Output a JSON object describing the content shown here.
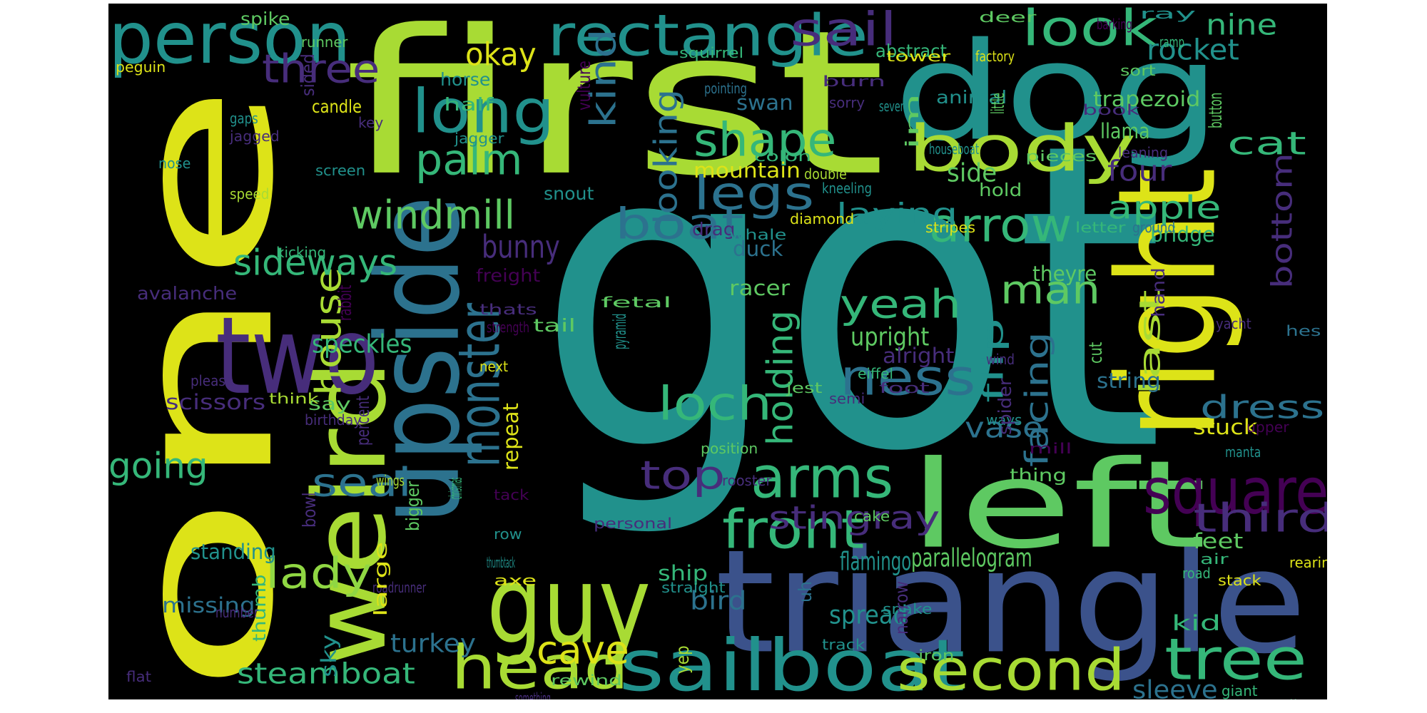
{
  "palette": {
    "yellow": "#dde318",
    "lime": "#a8db34",
    "green": "#5ec962",
    "sea": "#35b779",
    "teal": "#21918c",
    "tealblue": "#2c728e",
    "blue": "#3b528b",
    "indigo": "#472d7b",
    "purple": "#440154",
    "mint": "#90d743"
  },
  "words": [
    {
      "text": "got",
      "color": "teal"
    },
    {
      "text": "first",
      "color": "lime"
    },
    {
      "text": "one",
      "color": "yellow"
    },
    {
      "text": "triangle",
      "color": "blue"
    },
    {
      "text": "dog",
      "color": "teal"
    },
    {
      "text": "right",
      "color": "yellow"
    },
    {
      "text": "upside",
      "color": "tealblue"
    },
    {
      "text": "left",
      "color": "green"
    },
    {
      "text": "guy",
      "color": "lime"
    },
    {
      "text": "weird",
      "color": "lime"
    },
    {
      "text": "two",
      "color": "indigo"
    },
    {
      "text": "person",
      "color": "teal"
    },
    {
      "text": "rectangle",
      "color": "teal"
    },
    {
      "text": "sailboat",
      "color": "teal"
    },
    {
      "text": "head",
      "color": "lime"
    },
    {
      "text": "second",
      "color": "lime"
    },
    {
      "text": "body",
      "color": "lime"
    },
    {
      "text": "long",
      "color": "teal"
    },
    {
      "text": "arms",
      "color": "sea"
    },
    {
      "text": "square",
      "color": "purple"
    },
    {
      "text": "monster",
      "color": "tealblue"
    },
    {
      "text": "look",
      "color": "sea"
    },
    {
      "text": "tree",
      "color": "sea"
    },
    {
      "text": "shape",
      "color": "sea"
    },
    {
      "text": "legs",
      "color": "tealblue"
    },
    {
      "text": "front",
      "color": "sea"
    },
    {
      "text": "arrow",
      "color": "sea"
    },
    {
      "text": "ness",
      "color": "tealblue"
    },
    {
      "text": "loch",
      "color": "sea"
    },
    {
      "text": "windmill",
      "color": "green"
    },
    {
      "text": "palm",
      "color": "sea"
    },
    {
      "text": "house",
      "color": "lime"
    },
    {
      "text": "last",
      "color": "lime"
    },
    {
      "text": "three",
      "color": "indigo"
    },
    {
      "text": "kind",
      "color": "tealblue"
    },
    {
      "text": "sail",
      "color": "indigo"
    },
    {
      "text": "boat",
      "color": "tealblue"
    },
    {
      "text": "top",
      "color": "indigo"
    },
    {
      "text": "sideways",
      "color": "sea"
    },
    {
      "text": "lady",
      "color": "mint"
    },
    {
      "text": "yeah",
      "color": "sea"
    },
    {
      "text": "man",
      "color": "green"
    },
    {
      "text": "looking",
      "color": "tealblue"
    },
    {
      "text": "facing",
      "color": "tealblue"
    },
    {
      "text": "third",
      "color": "indigo"
    },
    {
      "text": "steamboat",
      "color": "sea"
    },
    {
      "text": "seal",
      "color": "tealblue"
    },
    {
      "text": "going",
      "color": "sea"
    },
    {
      "text": "cave",
      "color": "yellow"
    },
    {
      "text": "holding",
      "color": "sea"
    },
    {
      "text": "dress",
      "color": "tealblue"
    },
    {
      "text": "bottom",
      "color": "indigo"
    },
    {
      "text": "flip",
      "color": "teal"
    },
    {
      "text": "cat",
      "color": "sea"
    },
    {
      "text": "stingray",
      "color": "indigo"
    },
    {
      "text": "apple",
      "color": "sea"
    },
    {
      "text": "okay",
      "color": "yellow"
    },
    {
      "text": "bunny",
      "color": "indigo"
    },
    {
      "text": "laying",
      "color": "teal"
    },
    {
      "text": "rocket",
      "color": "teal"
    },
    {
      "text": "nine",
      "color": "sea"
    },
    {
      "text": "vase",
      "color": "tealblue"
    },
    {
      "text": "four",
      "color": "indigo"
    },
    {
      "text": "side",
      "color": "green"
    },
    {
      "text": "speckles",
      "color": "sea"
    },
    {
      "text": "upright",
      "color": "green"
    },
    {
      "text": "turkey",
      "color": "tealblue"
    },
    {
      "text": "sleeve",
      "color": "tealblue"
    },
    {
      "text": "bird",
      "color": "tealblue"
    },
    {
      "text": "spread",
      "color": "teal"
    },
    {
      "text": "parallelogram",
      "color": "green"
    },
    {
      "text": "flamingo",
      "color": "teal"
    },
    {
      "text": "trapezoid",
      "color": "green"
    },
    {
      "text": "llama",
      "color": "green"
    },
    {
      "text": "mountain",
      "color": "yellow"
    },
    {
      "text": "swan",
      "color": "tealblue"
    },
    {
      "text": "duck",
      "color": "tealblue"
    },
    {
      "text": "racer",
      "color": "green"
    },
    {
      "text": "theyre",
      "color": "green"
    },
    {
      "text": "stuck",
      "color": "yellow"
    },
    {
      "text": "string",
      "color": "tealblue"
    },
    {
      "text": "scissors",
      "color": "indigo"
    },
    {
      "text": "missing",
      "color": "tealblue"
    },
    {
      "text": "standing",
      "color": "teal"
    },
    {
      "text": "ship",
      "color": "sea"
    },
    {
      "text": "horse",
      "color": "teal"
    },
    {
      "text": "half",
      "color": "sea"
    },
    {
      "text": "abstract",
      "color": "sea"
    },
    {
      "text": "animal",
      "color": "teal"
    },
    {
      "text": "feet",
      "color": "green"
    },
    {
      "text": "kid",
      "color": "sea"
    },
    {
      "text": "bridge",
      "color": "sea"
    },
    {
      "text": "alright",
      "color": "indigo"
    },
    {
      "text": "tail",
      "color": "green"
    },
    {
      "text": "say",
      "color": "green"
    },
    {
      "text": "snout",
      "color": "teal"
    },
    {
      "text": "freight",
      "color": "purple"
    },
    {
      "text": "avalanche",
      "color": "indigo"
    },
    {
      "text": "repeat",
      "color": "yellow"
    },
    {
      "text": "drag",
      "color": "indigo"
    },
    {
      "text": "hold",
      "color": "green"
    },
    {
      "text": "thing",
      "color": "green"
    },
    {
      "text": "spike",
      "color": "green"
    },
    {
      "text": "runner",
      "color": "green"
    },
    {
      "text": "peguin",
      "color": "yellow"
    },
    {
      "text": "sided",
      "color": "indigo"
    },
    {
      "text": "candle",
      "color": "yellow"
    },
    {
      "text": "gaps",
      "color": "teal"
    },
    {
      "text": "jagged",
      "color": "indigo"
    },
    {
      "text": "key",
      "color": "indigo"
    },
    {
      "text": "nose",
      "color": "teal"
    },
    {
      "text": "speed",
      "color": "lime"
    },
    {
      "text": "screen",
      "color": "teal"
    },
    {
      "text": "jagger",
      "color": "teal"
    },
    {
      "text": "kicking",
      "color": "sea"
    },
    {
      "text": "rabbit",
      "color": "purple"
    },
    {
      "text": "thats",
      "color": "indigo"
    },
    {
      "text": "strength",
      "color": "purple"
    },
    {
      "text": "next",
      "color": "yellow"
    },
    {
      "text": "please",
      "color": "indigo"
    },
    {
      "text": "think",
      "color": "lime"
    },
    {
      "text": "birthday",
      "color": "indigo"
    },
    {
      "text": "percent",
      "color": "indigo"
    },
    {
      "text": "bigger",
      "color": "green"
    },
    {
      "text": "wings",
      "color": "lime"
    },
    {
      "text": "bowl",
      "color": "indigo"
    },
    {
      "text": "tack",
      "color": "purple"
    },
    {
      "text": "christmas",
      "color": "sea"
    },
    {
      "text": "thumb",
      "color": "sea"
    },
    {
      "text": "number",
      "color": "indigo"
    },
    {
      "text": "roadrunner",
      "color": "indigo"
    },
    {
      "text": "large",
      "color": "yellow"
    },
    {
      "text": "sky",
      "color": "teal"
    },
    {
      "text": "flat",
      "color": "indigo"
    },
    {
      "text": "something",
      "color": "indigo"
    },
    {
      "text": "rewind",
      "color": "green"
    },
    {
      "text": "axe",
      "color": "yellow"
    },
    {
      "text": "row",
      "color": "teal"
    },
    {
      "text": "thumbtack",
      "color": "teal"
    },
    {
      "text": "personal",
      "color": "indigo"
    },
    {
      "text": "fetal",
      "color": "green"
    },
    {
      "text": "pyramid",
      "color": "teal"
    },
    {
      "text": "vulture",
      "color": "purple"
    },
    {
      "text": "squirrel",
      "color": "sea"
    },
    {
      "text": "tower",
      "color": "yellow"
    },
    {
      "text": "factory",
      "color": "yellow"
    },
    {
      "text": "deer",
      "color": "green"
    },
    {
      "text": "barking",
      "color": "purple"
    },
    {
      "text": "ray",
      "color": "teal"
    },
    {
      "text": "ramp",
      "color": "sea"
    },
    {
      "text": "sort",
      "color": "green"
    },
    {
      "text": "pointing",
      "color": "tealblue"
    },
    {
      "text": "burn",
      "color": "indigo"
    },
    {
      "text": "sorry",
      "color": "indigo"
    },
    {
      "text": "seventy",
      "color": "teal"
    },
    {
      "text": "im",
      "color": "green"
    },
    {
      "text": "little",
      "color": "green"
    },
    {
      "text": "book",
      "color": "indigo"
    },
    {
      "text": "button",
      "color": "green"
    },
    {
      "text": "houseboat",
      "color": "teal"
    },
    {
      "text": "pieces",
      "color": "green"
    },
    {
      "text": "leaning",
      "color": "indigo"
    },
    {
      "text": "colon",
      "color": "sea"
    },
    {
      "text": "double",
      "color": "lime"
    },
    {
      "text": "kneeling",
      "color": "teal"
    },
    {
      "text": "diamond",
      "color": "yellow"
    },
    {
      "text": "whale",
      "color": "teal"
    },
    {
      "text": "stripes",
      "color": "yellow"
    },
    {
      "text": "letter",
      "color": "sea"
    },
    {
      "text": "ground",
      "color": "tealblue"
    },
    {
      "text": "hand",
      "color": "indigo"
    },
    {
      "text": "yacht",
      "color": "indigo"
    },
    {
      "text": "hes",
      "color": "tealblue"
    },
    {
      "text": "cut",
      "color": "green"
    },
    {
      "text": "wind",
      "color": "indigo"
    },
    {
      "text": "jest",
      "color": "green"
    },
    {
      "text": "semi",
      "color": "indigo"
    },
    {
      "text": "eiffel",
      "color": "sea"
    },
    {
      "text": "foot",
      "color": "indigo"
    },
    {
      "text": "ways",
      "color": "teal"
    },
    {
      "text": "spider",
      "color": "indigo"
    },
    {
      "text": "mill",
      "color": "purple"
    },
    {
      "text": "manta",
      "color": "teal"
    },
    {
      "text": "upper",
      "color": "purple"
    },
    {
      "text": "position",
      "color": "green"
    },
    {
      "text": "rooster",
      "color": "indigo"
    },
    {
      "text": "cake",
      "color": "green"
    },
    {
      "text": "air",
      "color": "sea"
    },
    {
      "text": "rearing",
      "color": "yellow"
    },
    {
      "text": "road",
      "color": "sea"
    },
    {
      "text": "stack",
      "color": "yellow"
    },
    {
      "text": "straight",
      "color": "teal"
    },
    {
      "text": "snake",
      "color": "teal"
    },
    {
      "text": "narrow",
      "color": "indigo"
    },
    {
      "text": "uh",
      "color": "tealblue"
    },
    {
      "text": "track",
      "color": "teal"
    },
    {
      "text": "yep",
      "color": "lime"
    },
    {
      "text": "iron",
      "color": "green"
    },
    {
      "text": "giant",
      "color": "sea"
    },
    {
      "text": "split",
      "color": "sea"
    }
  ]
}
